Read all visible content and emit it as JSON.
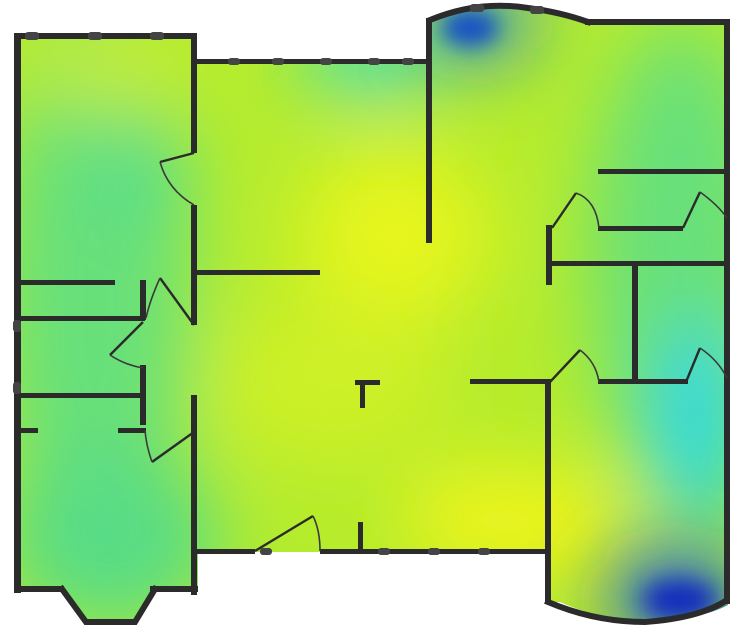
{
  "map": {
    "kind": "wifi-signal-heatmap-floorplan",
    "colors": {
      "strong": "#e6f51a",
      "good": "#b5ec2c",
      "medium": "#68e07a",
      "weak": "#22d8e6",
      "weaker": "#1a7ae8",
      "weakest": "#0a1fbf",
      "wall": "#2b2b2b",
      "background": "#ffffff"
    },
    "legend_visible": false,
    "labels_visible": false
  }
}
